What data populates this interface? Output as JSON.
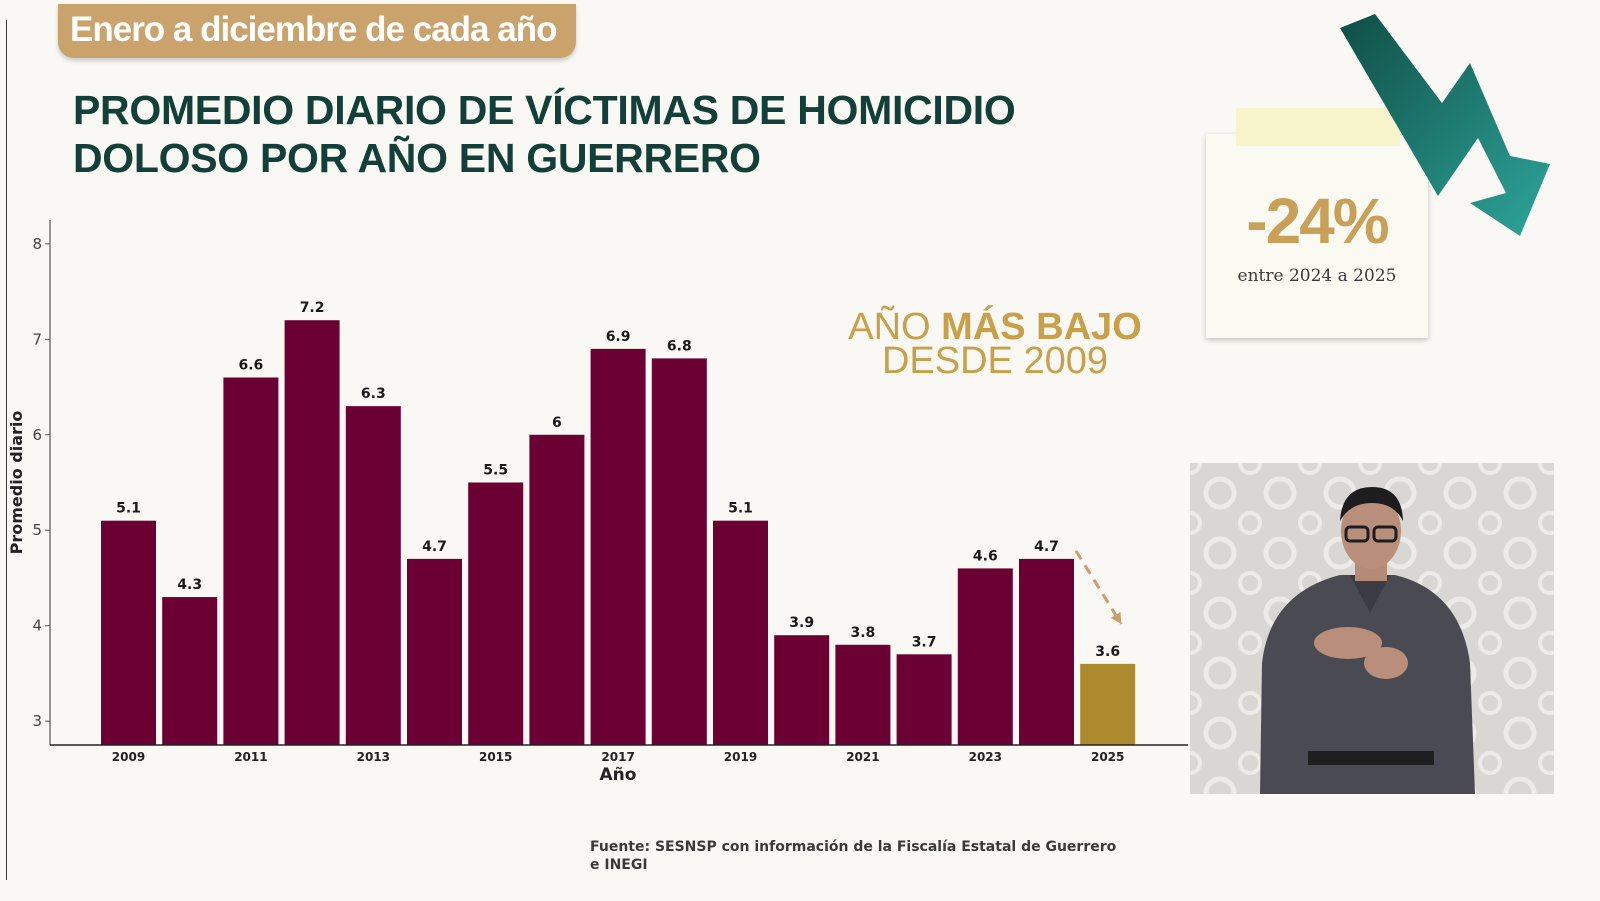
{
  "header": {
    "tag": "Enero a diciembre de cada año",
    "title_line1": "PROMEDIO DIARIO DE VÍCTIMAS DE HOMICIDIO",
    "title_line2": "DOLOSO POR AÑO EN GUERRERO"
  },
  "callout": {
    "value": "-24%",
    "caption": "entre 2024 a 2025"
  },
  "headline": {
    "line1_normal": "AÑO",
    "line1_bold": "MÁS BAJO",
    "line2": "DESDE 2009"
  },
  "source": "Fuente: SESNSP con información de la Fiscalía Estatal de Guerrero e INEGI",
  "colors": {
    "bar": "#6b0033",
    "highlight": "#ad8a2e",
    "title": "#123f37",
    "accent": "#c9a048",
    "arrow_dark": "#0f4e46",
    "arrow_light": "#2ea59b"
  },
  "video": {
    "icon": "sign-language-interpreter"
  },
  "chart_data": {
    "type": "bar",
    "title": "PROMEDIO DIARIO DE VÍCTIMAS DE HOMICIDIO DOLOSO POR AÑO EN GUERRERO",
    "xlabel": "Año",
    "ylabel": "Promedio diario",
    "categories": [
      "2009",
      "2010",
      "2011",
      "2012",
      "2013",
      "2014",
      "2015",
      "2016",
      "2017",
      "2018",
      "2019",
      "2020",
      "2021",
      "2022",
      "2023",
      "2024",
      "2025"
    ],
    "values": [
      5.1,
      4.3,
      6.6,
      7.2,
      6.3,
      4.7,
      5.5,
      6,
      6.9,
      6.8,
      5.1,
      3.9,
      3.8,
      3.7,
      4.6,
      4.7,
      3.6
    ],
    "data_labels": [
      "5.1",
      "4.3",
      "6.6",
      "7.2",
      "6.3",
      "4.7",
      "5.5",
      "6",
      "6.9",
      "6.8",
      "5.1",
      "3.9",
      "3.8",
      "3.7",
      "4.6",
      "4.7",
      "3.6"
    ],
    "visible_x_ticks": [
      "2009",
      "2011",
      "2013",
      "2015",
      "2017",
      "2019",
      "2021",
      "2023",
      "2025"
    ],
    "y_ticks": [
      "3",
      "4",
      "5",
      "6",
      "7",
      "8"
    ],
    "ylim": [
      2.75,
      8.25
    ],
    "highlight_category": "2025",
    "grid": false,
    "legend": "none"
  }
}
